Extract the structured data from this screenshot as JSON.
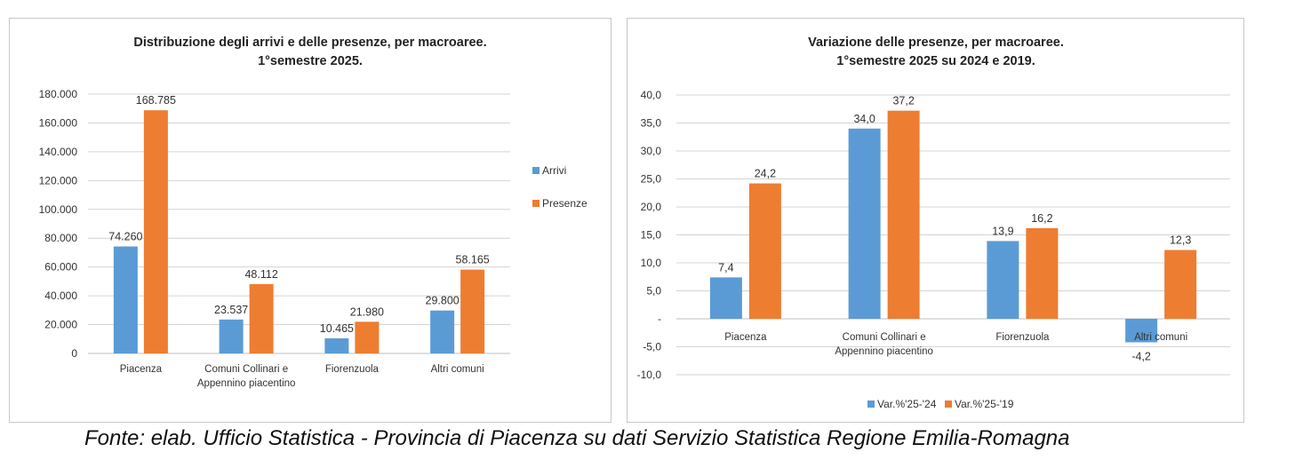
{
  "footer": {
    "source": "Fonte: elab. Ufficio Statistica - Provincia di Piacenza su dati Servizio Statistica Regione Emilia-Romagna"
  },
  "chart_data": [
    {
      "type": "bar",
      "title_lines": [
        "Distribuzione degli arrivi e delle presenze, per macroaree.",
        "1°semestre 2025."
      ],
      "categories": [
        [
          "Piacenza"
        ],
        [
          "Comuni Collinari e",
          "Appennino piacentino"
        ],
        [
          "Fiorenzuola"
        ],
        [
          "Altri comuni"
        ]
      ],
      "series": [
        {
          "name": "Arrivi",
          "color": "#5b9bd5",
          "values": [
            74260,
            23537,
            10465,
            29800
          ],
          "labels": [
            "74.260",
            "23.537",
            "10.465",
            "29.800"
          ]
        },
        {
          "name": "Presenze",
          "color": "#ed7d31",
          "values": [
            168785,
            48112,
            21980,
            58165
          ],
          "labels": [
            "168.785",
            "48.112",
            "21.980",
            "58.165"
          ]
        }
      ],
      "ylim": [
        0,
        180000
      ],
      "yticks": [
        0,
        20000,
        40000,
        60000,
        80000,
        100000,
        120000,
        140000,
        160000,
        180000
      ],
      "ytick_labels": [
        "0",
        "20.000",
        "40.000",
        "60.000",
        "80.000",
        "100.000",
        "120.000",
        "140.000",
        "160.000",
        "180.000"
      ],
      "grid": true,
      "legend_position": "right"
    },
    {
      "type": "bar",
      "title_lines": [
        "Variazione delle presenze, per macroaree.",
        "1°semestre 2025 su 2024 e 2019."
      ],
      "categories": [
        [
          "Piacenza"
        ],
        [
          "Comuni Collinari e",
          "Appennino piacentino"
        ],
        [
          "Fiorenzuola"
        ],
        [
          "Altri comuni"
        ]
      ],
      "series": [
        {
          "name": "Var.%'25-'24",
          "color": "#5b9bd5",
          "values": [
            7.4,
            34.0,
            13.9,
            -4.2
          ],
          "labels": [
            "7,4",
            "34,0",
            "13,9",
            "-4,2"
          ]
        },
        {
          "name": "Var.%'25-'19",
          "color": "#ed7d31",
          "values": [
            24.2,
            37.2,
            16.2,
            12.3
          ],
          "labels": [
            "24,2",
            "37,2",
            "16,2",
            "12,3"
          ]
        }
      ],
      "ylim": [
        -10,
        40
      ],
      "yticks": [
        -10,
        -5,
        0,
        5,
        10,
        15,
        20,
        25,
        30,
        35,
        40
      ],
      "ytick_labels": [
        "-10,0",
        "-5,0",
        "-",
        "5,0",
        "10,0",
        "15,0",
        "20,0",
        "25,0",
        "30,0",
        "35,0",
        "40,0"
      ],
      "grid": true,
      "legend_position": "bottom"
    }
  ]
}
